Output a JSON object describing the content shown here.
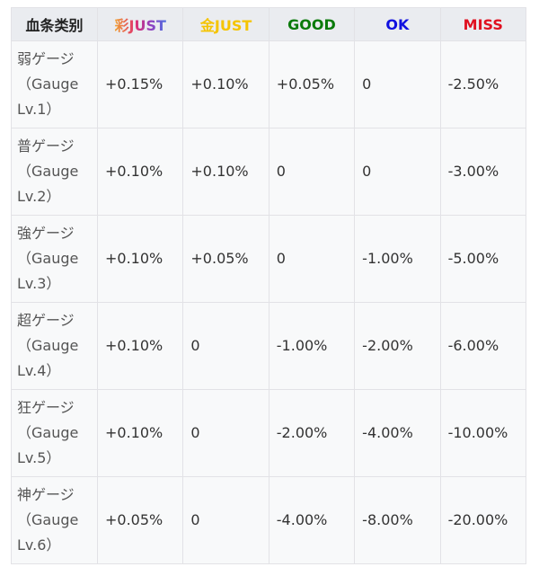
{
  "headers": [
    {
      "label": "血条类别",
      "color": "#222222"
    },
    {
      "label": "彩JUST",
      "color": "gradient"
    },
    {
      "label": "金JUST",
      "color": "#f5c400"
    },
    {
      "label": "GOOD",
      "color": "#0a7a0a"
    },
    {
      "label": "OK",
      "color": "#1010e0"
    },
    {
      "label": "MISS",
      "color": "#e01020"
    }
  ],
  "rows": [
    {
      "name": "弱ゲージ（Gauge Lv.1）",
      "values": [
        "+0.15%",
        "+0.10%",
        "+0.05%",
        "0",
        "-2.50%"
      ]
    },
    {
      "name": "普ゲージ（Gauge Lv.2）",
      "values": [
        "+0.10%",
        "+0.10%",
        "0",
        "0",
        "-3.00%"
      ]
    },
    {
      "name": "強ゲージ（Gauge Lv.3）",
      "values": [
        "+0.10%",
        "+0.05%",
        "0",
        "-1.00%",
        "-5.00%"
      ]
    },
    {
      "name": "超ゲージ（Gauge Lv.4）",
      "values": [
        "+0.10%",
        "0",
        "-1.00%",
        "-2.00%",
        "-6.00%"
      ]
    },
    {
      "name": "狂ゲージ（Gauge Lv.5）",
      "values": [
        "+0.10%",
        "0",
        "-2.00%",
        "-4.00%",
        "-10.00%"
      ]
    },
    {
      "name": "神ゲージ（Gauge Lv.6）",
      "values": [
        "+0.05%",
        "0",
        "-4.00%",
        "-8.00%",
        "-20.00%"
      ]
    }
  ]
}
